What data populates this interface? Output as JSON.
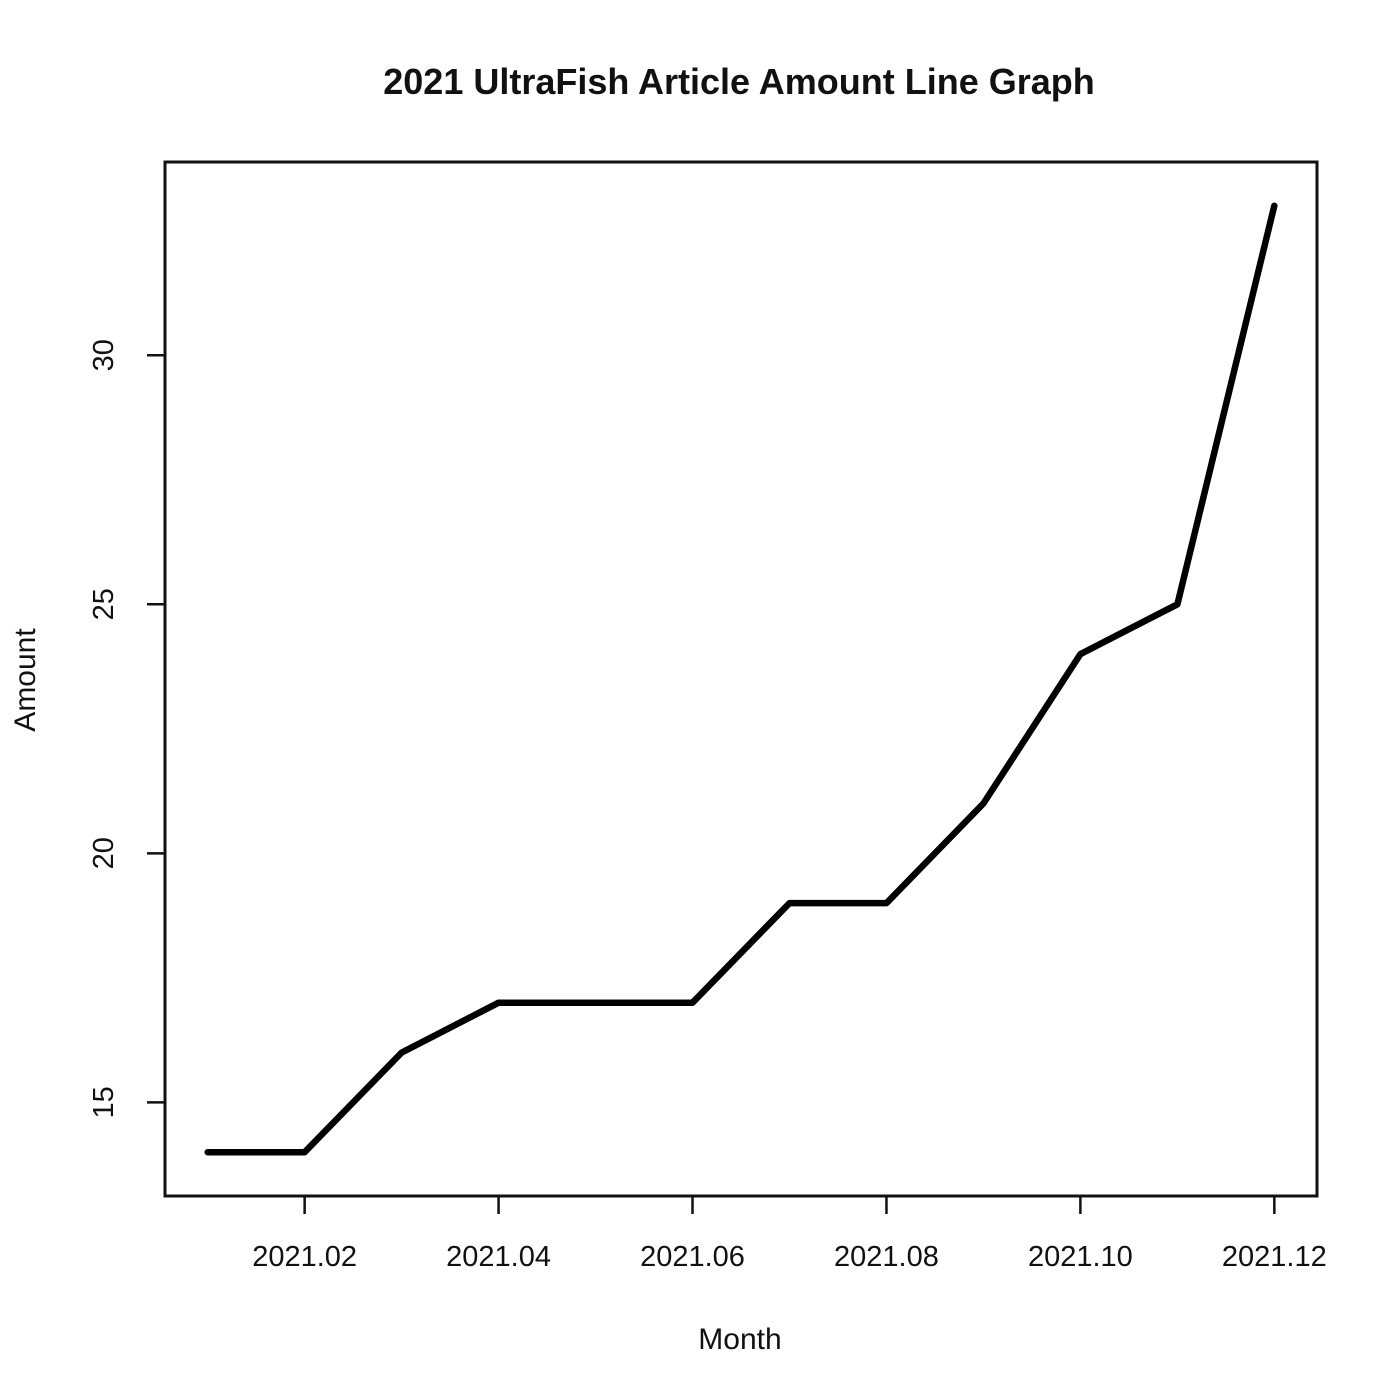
{
  "chart_data": {
    "type": "line",
    "title": "2021 UltraFish Article Amount Line Graph",
    "xlabel": "Month",
    "ylabel": "Amount",
    "x": [
      "2021.01",
      "2021.02",
      "2021.03",
      "2021.04",
      "2021.05",
      "2021.06",
      "2021.07",
      "2021.08",
      "2021.09",
      "2021.10",
      "2021.11",
      "2021.12"
    ],
    "series": [
      {
        "values": [
          14,
          14,
          16,
          17,
          17,
          17,
          19,
          19,
          21,
          24,
          25,
          33
        ]
      }
    ],
    "x_ticks": [
      "2021.02",
      "2021.04",
      "2021.06",
      "2021.08",
      "2021.10",
      "2021.12"
    ],
    "y_ticks": [
      15,
      20,
      25,
      30
    ],
    "ylim": [
      13.12,
      33.88
    ],
    "grid": false,
    "legend": "none"
  }
}
